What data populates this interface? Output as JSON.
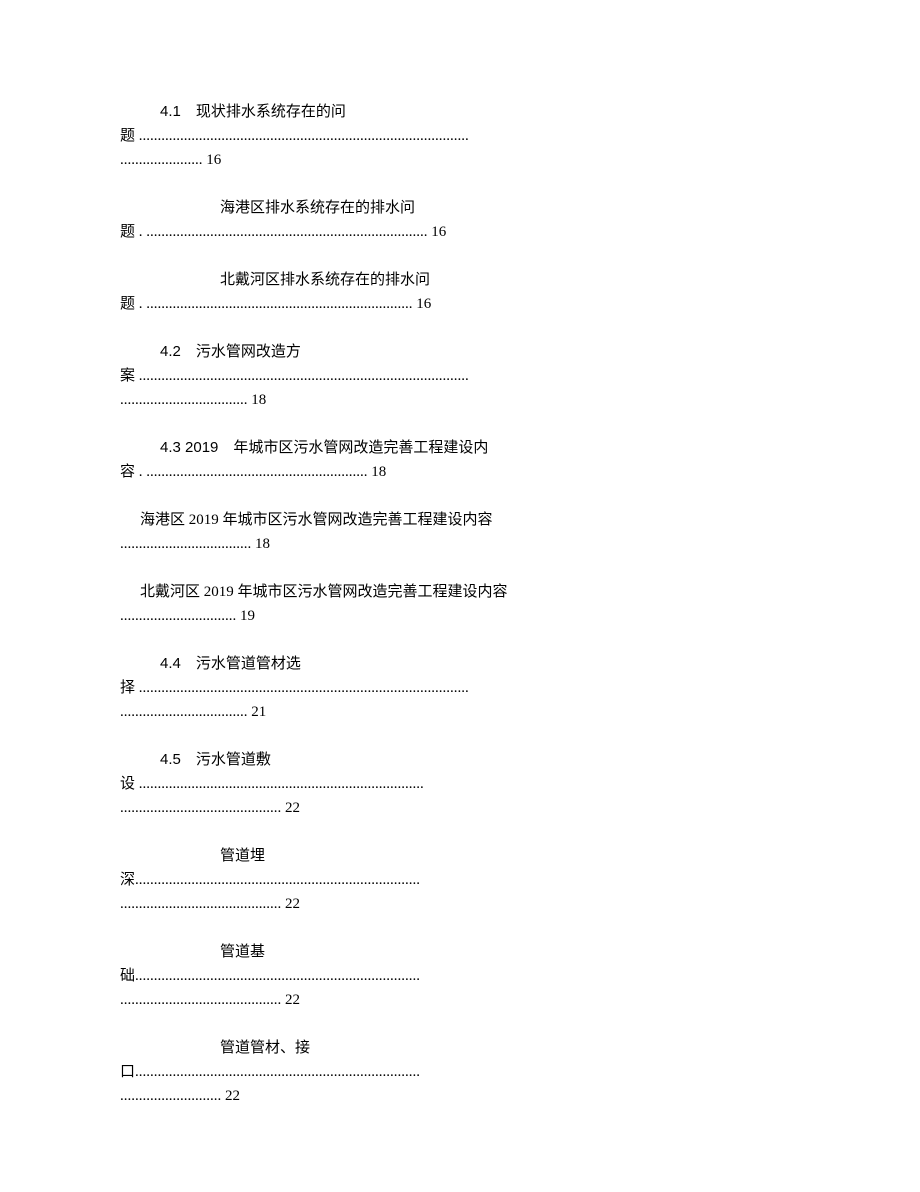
{
  "toc": [
    {
      "prefix": "4.1",
      "gap": " ",
      "title_line1": "现状排水系统存在的问",
      "cont": "题 ........................................................................................",
      "dots2": "...................... 16",
      "indent": "indent-1"
    },
    {
      "prefix": "",
      "gap": "",
      "title_line1": "海港区排水系统存在的排水问",
      "cont": "题 . ........................................................................... 16",
      "dots2": "",
      "indent": "indent-2"
    },
    {
      "prefix": "",
      "gap": "",
      "title_line1": "北戴河区排水系统存在的排水问",
      "cont": "题 . ....................................................................... 16",
      "dots2": "",
      "indent": "indent-2"
    },
    {
      "prefix": "4.2",
      "gap": " ",
      "title_line1": "污水管网改造方",
      "cont": "案 ........................................................................................",
      "dots2": ".................................. 18",
      "indent": "indent-1"
    },
    {
      "prefix": "4.3 2019",
      "gap": " ",
      "title_line1": "年城市区污水管网改造完善工程建设内",
      "cont": "容 . ........................................................... 18",
      "dots2": "",
      "indent": "indent-1"
    },
    {
      "prefix": "",
      "gap": "",
      "title_line1": "海港区 2019 年城市区污水管网改造完善工程建设内容",
      "cont": "................................... 18",
      "dots2": "",
      "indent": "indent-3"
    },
    {
      "prefix": "",
      "gap": "",
      "title_line1": "北戴河区 2019 年城市区污水管网改造完善工程建设内容",
      "cont": "............................... 19",
      "dots2": "",
      "indent": "indent-3"
    },
    {
      "prefix": "4.4",
      "gap": " ",
      "title_line1": "污水管道管材选",
      "cont": "择 ........................................................................................",
      "dots2": ".................................. 21",
      "indent": "indent-1"
    },
    {
      "prefix": "4.5",
      "gap": " ",
      "title_line1": "污水管道敷",
      "cont": "设 ............................................................................",
      "dots2": "........................................... 22",
      "indent": "indent-1"
    },
    {
      "prefix": "",
      "gap": "",
      "title_line1": "管道埋",
      "cont": "深............................................................................",
      "dots2": "........................................... 22",
      "indent": "indent-2"
    },
    {
      "prefix": "",
      "gap": "",
      "title_line1": "管道基",
      "cont": "础............................................................................",
      "dots2": "........................................... 22",
      "indent": "indent-2"
    },
    {
      "prefix": "",
      "gap": "",
      "title_line1": "管道管材、接",
      "cont": "口............................................................................",
      "dots2": "........................... 22",
      "indent": "indent-2"
    }
  ]
}
